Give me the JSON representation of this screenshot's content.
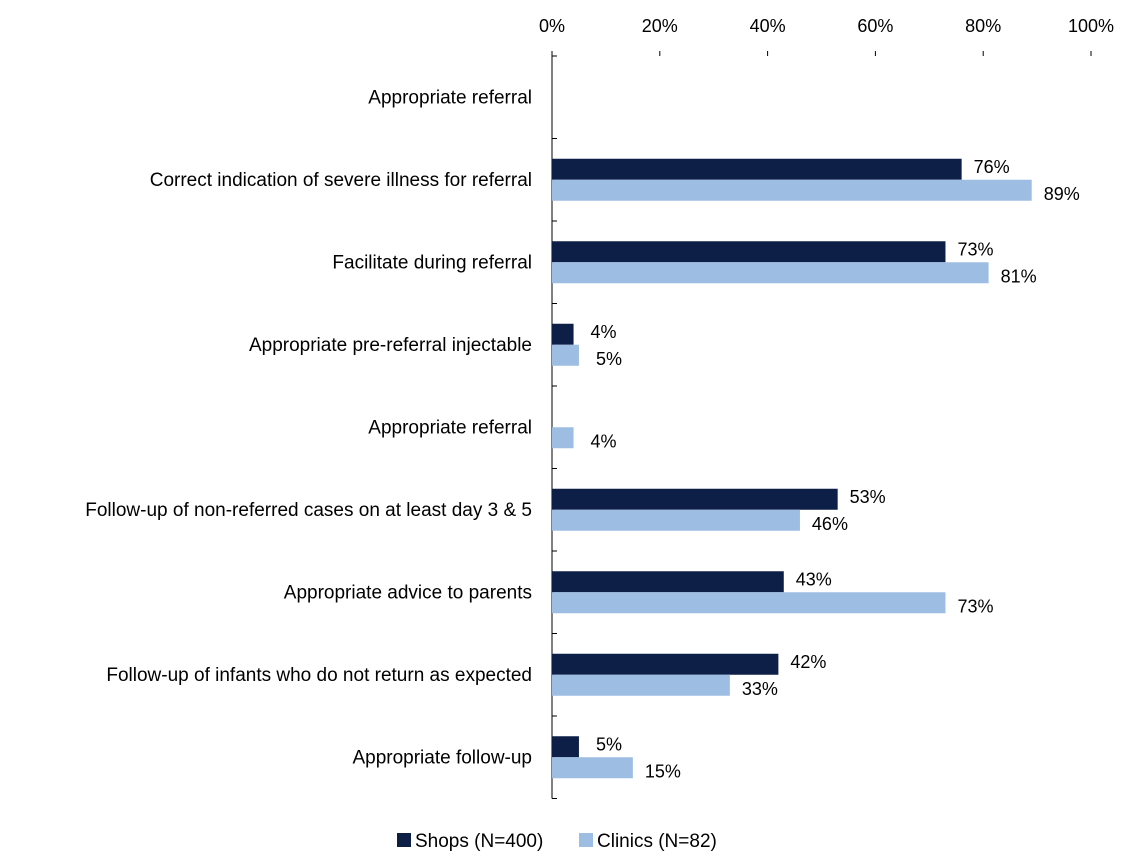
{
  "chart_data": {
    "type": "bar",
    "orientation": "horizontal",
    "xlim": [
      0,
      100
    ],
    "x_tick_labels": [
      "0%",
      "20%",
      "40%",
      "60%",
      "80%",
      "100%"
    ],
    "x_axis_position": "top",
    "grid": false,
    "legend_position": "bottom",
    "categories": [
      "Appropriate referral",
      "Correct indication of severe illness for referral",
      "Facilitate during referral",
      "Appropriate pre-referral injectable",
      "Appropriate referral",
      "Follow-up of non-referred cases on at least day 3 & 5",
      "Appropriate advice to parents",
      "Follow-up of infants who do not return as expected",
      "Appropriate follow-up"
    ],
    "series": [
      {
        "name": "Shops (N=400)",
        "color": "#0d1f47",
        "values": [
          null,
          76,
          73,
          4,
          null,
          53,
          43,
          42,
          5
        ],
        "labels": [
          "",
          "76%",
          "73%",
          "4%",
          "",
          "53%",
          "43%",
          "42%",
          "5%"
        ]
      },
      {
        "name": "Clinics (N=82)",
        "color": "#9dbde3",
        "values": [
          null,
          89,
          81,
          5,
          4,
          46,
          73,
          33,
          15
        ],
        "labels": [
          "",
          "89%",
          "81%",
          "5%",
          "4%",
          "46%",
          "73%",
          "33%",
          "15%"
        ]
      }
    ]
  }
}
